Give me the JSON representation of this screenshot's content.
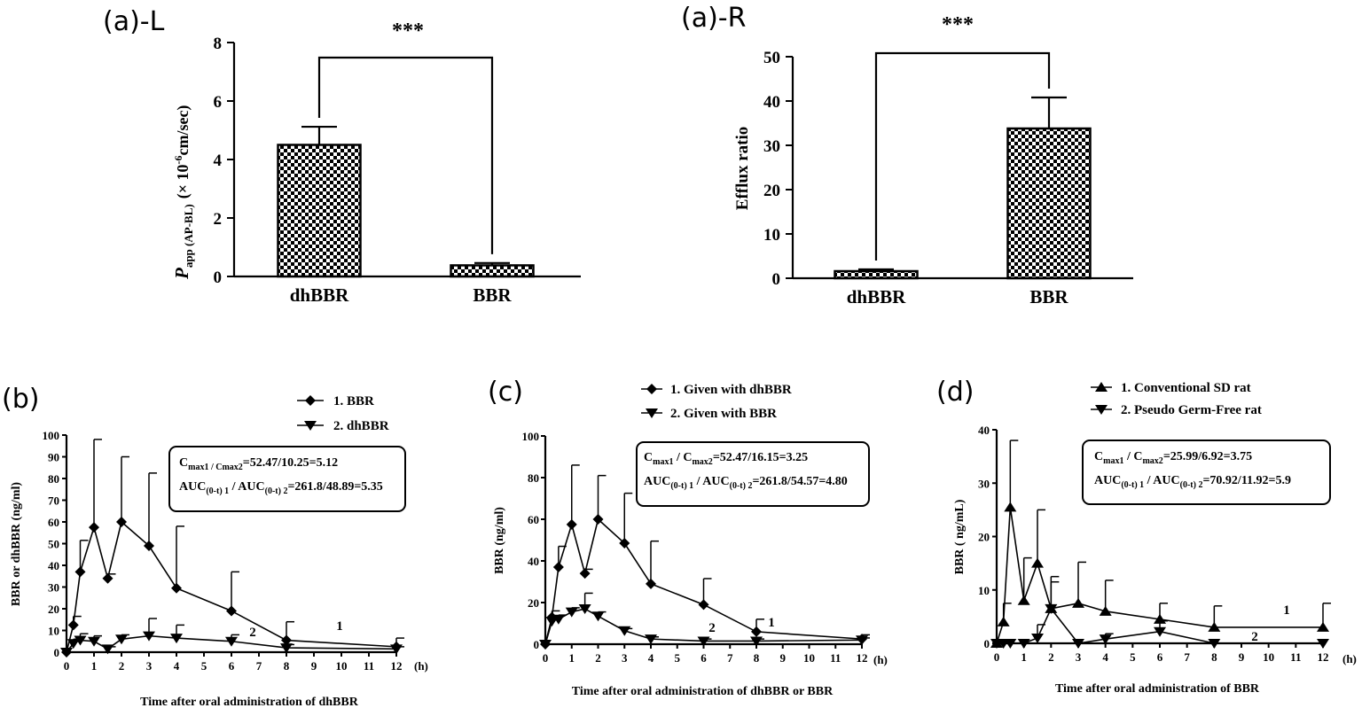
{
  "colors": {
    "ink": "#000000",
    "background": "#ffffff"
  },
  "chart_data": [
    {
      "id": "aL",
      "type": "bar",
      "panel_label": "(a)-L",
      "ylabel_main": "P",
      "ylabel_sub": "app (AP-BL)",
      "ylabel_rest": "(× 10",
      "ylabel_exp": "-6",
      "ylabel_end": "cm/sec)",
      "categories": [
        "dhBBR",
        "BBR"
      ],
      "values": [
        4.5,
        0.38
      ],
      "errors": [
        0.62,
        0.08
      ],
      "ylim": [
        0,
        8
      ],
      "yticks": [
        "0",
        "2",
        "4",
        "6",
        "8"
      ],
      "pattern": "checkerboard",
      "significance": "***"
    },
    {
      "id": "aR",
      "type": "bar",
      "panel_label": "(a)-R",
      "ylabel": "Efflux ratio",
      "categories": [
        "dhBBR",
        "BBR"
      ],
      "values": [
        1.6,
        33.8
      ],
      "errors": [
        0.4,
        7.0
      ],
      "ylim": [
        0,
        50
      ],
      "yticks": [
        "0",
        "10",
        "20",
        "30",
        "40",
        "50"
      ],
      "pattern": "checkerboard",
      "significance": "***"
    },
    {
      "id": "b",
      "type": "line",
      "panel_label": "(b)",
      "xlabel": "Time after oral administration of dhBBR",
      "ylabel": "BBR or dhBBR (ng/ml)",
      "x_unit": "(h)",
      "xlim": [
        0,
        12
      ],
      "ylim": [
        0,
        100
      ],
      "xticks": [
        "0",
        "1",
        "2",
        "3",
        "4",
        "5",
        "6",
        "7",
        "8",
        "9",
        "10",
        "11",
        "12"
      ],
      "yticks": [
        "0",
        "10",
        "20",
        "30",
        "40",
        "50",
        "60",
        "70",
        "80",
        "90",
        "100"
      ],
      "legend": [
        "1. BBR",
        "2. dhBBR"
      ],
      "legend_position": "top-right",
      "series_labels": [
        "1",
        "2"
      ],
      "box_line1_pre": "C",
      "box_line1_sub1": "max1 / Cmax2",
      "box_line1_post": "=52.47/10.25=5.12",
      "box_line2_pre": "AUC",
      "box_line2_sub1": "(0-t) 1",
      "box_line2_mid": " / AUC",
      "box_line2_sub2": "(0-t) 2",
      "box_line2_post": "=261.8/48.89=5.35",
      "series": [
        {
          "name": "1. BBR",
          "marker": "diamond",
          "x": [
            0,
            0.25,
            0.5,
            1,
            1.5,
            2,
            3,
            4,
            6,
            8,
            12
          ],
          "y": [
            0,
            12.5,
            37,
            57.5,
            34,
            60,
            49,
            29.5,
            19,
            5.5,
            2.5
          ],
          "err": [
            0,
            4,
            14.5,
            40.5,
            2,
            30,
            33.5,
            28.5,
            18,
            8.5,
            4
          ]
        },
        {
          "name": "2. dhBBR",
          "marker": "triangle-down",
          "x": [
            0,
            0.25,
            0.5,
            1,
            1.5,
            2,
            3,
            4,
            6,
            8,
            12
          ],
          "y": [
            0,
            4,
            5.5,
            5,
            1.5,
            6,
            7.5,
            6.5,
            5,
            2,
            1.5
          ],
          "err": [
            0,
            2,
            3,
            2.5,
            1,
            2,
            8,
            6,
            3,
            1.5,
            1
          ]
        }
      ]
    },
    {
      "id": "c",
      "type": "line",
      "panel_label": "(c)",
      "xlabel": "Time after oral administration of dhBBR or BBR",
      "ylabel": "BBR (ng/ml)",
      "x_unit": "(h)",
      "xlim": [
        0,
        12
      ],
      "ylim": [
        0,
        100
      ],
      "xticks": [
        "0",
        "1",
        "2",
        "3",
        "4",
        "5",
        "6",
        "7",
        "8",
        "9",
        "10",
        "11",
        "12"
      ],
      "yticks": [
        "0",
        "20",
        "40",
        "60",
        "80",
        "100"
      ],
      "legend": [
        "1. Given with dhBBR",
        "2. Given with BBR"
      ],
      "legend_position": "top",
      "series_labels": [
        "1",
        "2"
      ],
      "box_line1_pre": "C",
      "box_line1_sub1": "max1",
      "box_line1_mid": " / C",
      "box_line1_sub2": "max2",
      "box_line1_post": "=52.47/16.15=3.25",
      "box_line2_pre": "AUC",
      "box_line2_sub1": "(0-t) 1",
      "box_line2_mid": " / AUC",
      "box_line2_sub2": "(0-t) 2",
      "box_line2_post": "=261.8/54.57=4.80",
      "series": [
        {
          "name": "1. Given with dhBBR",
          "marker": "diamond",
          "x": [
            0,
            0.25,
            0.5,
            1,
            1.5,
            2,
            3,
            4,
            6,
            8,
            12
          ],
          "y": [
            0,
            13,
            37,
            57.5,
            34,
            60,
            48.5,
            29,
            19,
            6,
            2.5
          ],
          "err": [
            0,
            3,
            10,
            28.5,
            2,
            21,
            24,
            20.5,
            12.5,
            6,
            2
          ]
        },
        {
          "name": "2. Given with BBR",
          "marker": "triangle-down",
          "x": [
            0,
            0.25,
            0.5,
            1,
            1.5,
            2,
            3,
            4,
            6,
            8,
            12
          ],
          "y": [
            0,
            11,
            12,
            15.5,
            17,
            13.5,
            6.5,
            2.5,
            1.5,
            1.5,
            2
          ],
          "err": [
            0,
            2,
            2,
            2,
            7.5,
            2,
            1,
            1,
            1,
            1,
            1
          ]
        }
      ]
    },
    {
      "id": "d",
      "type": "line",
      "panel_label": "(d)",
      "xlabel": "Time after oral administration of BBR",
      "ylabel": "BBR ( ng/mL)",
      "x_unit": "(h)",
      "xlim": [
        0,
        12
      ],
      "ylim": [
        0,
        40
      ],
      "xticks": [
        "0",
        "1",
        "2",
        "3",
        "4",
        "5",
        "6",
        "7",
        "8",
        "9",
        "10",
        "11",
        "12"
      ],
      "yticks": [
        "0",
        "10",
        "20",
        "30",
        "40"
      ],
      "legend": [
        "1. Conventional SD rat",
        "2. Pseudo Germ-Free rat"
      ],
      "legend_position": "top",
      "series_labels": [
        "1",
        "2"
      ],
      "box_line1_pre": "C",
      "box_line1_sub1": "max1",
      "box_line1_mid": " / C",
      "box_line1_sub2": "max2",
      "box_line1_post": "=25.99/6.92=3.75",
      "box_line2_pre": "AUC",
      "box_line2_sub1": "(0-t) 1",
      "box_line2_mid": " / AUC",
      "box_line2_sub2": "(0-t) 2",
      "box_line2_post": "=70.92/11.92=5.9",
      "series": [
        {
          "name": "1. Conventional SD rat",
          "marker": "triangle-up",
          "x": [
            0,
            0.25,
            0.5,
            1,
            1.5,
            2,
            3,
            4,
            6,
            8,
            12
          ],
          "y": [
            0,
            4,
            25.5,
            8,
            15,
            6.5,
            7.5,
            6,
            4.5,
            3,
            3
          ],
          "err": [
            0,
            3.5,
            12.5,
            8,
            10,
            6,
            7.7,
            5.8,
            3,
            4,
            4.5
          ]
        },
        {
          "name": "2. Pseudo Germ-Free rat",
          "marker": "triangle-down",
          "x": [
            0,
            0.25,
            0.5,
            1,
            1.5,
            2,
            3,
            4,
            6,
            8,
            12
          ],
          "y": [
            0,
            0,
            0,
            0,
            1,
            6.5,
            0,
            0.8,
            2.2,
            0,
            0
          ],
          "err": [
            0,
            0,
            0,
            0,
            2.5,
            5,
            0,
            1,
            2,
            0,
            0
          ]
        }
      ]
    }
  ]
}
